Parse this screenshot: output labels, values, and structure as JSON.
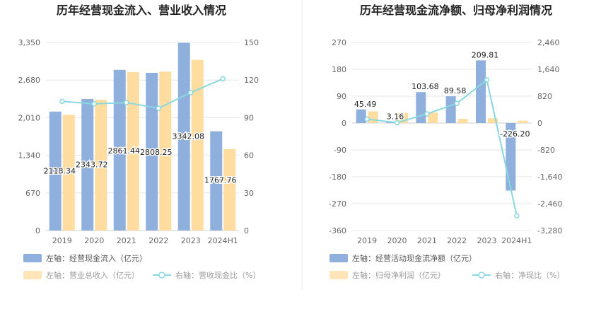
{
  "colors": {
    "bar_primary": "#8fb0dd",
    "bar_secondary": "#ffdc9f",
    "line": "#88d8df"
  },
  "chart_data": [
    {
      "type": "bar",
      "title": "历年经营现金流入、营业收入情况",
      "categories": [
        "2019",
        "2020",
        "2021",
        "2022",
        "2023",
        "2024H1"
      ],
      "left_axis_ticks": [
        "0",
        "670",
        "1,340",
        "2,010",
        "2,680",
        "3,350"
      ],
      "right_axis_ticks": [
        "0",
        "30",
        "60",
        "90",
        "120",
        "150"
      ],
      "ylim_left": [
        0,
        3350
      ],
      "ylim_right": [
        0,
        150
      ],
      "series": [
        {
          "name": "左轴：经营现金流入（亿元）",
          "axis": "left",
          "kind": "bar",
          "values": [
            2118.34,
            2343.72,
            2861.44,
            2808.25,
            3342.08,
            1767.76
          ],
          "labels": [
            "2118.34",
            "2343.72",
            "2861.44",
            "2808.25",
            "3342.08",
            "1767.76"
          ]
        },
        {
          "name": "左轴：营业总收入（亿元）",
          "axis": "left",
          "kind": "bar",
          "values": [
            2060,
            2330,
            2820,
            2830,
            3040,
            1450
          ]
        },
        {
          "name": "右轴：营收现金比（%）",
          "axis": "right",
          "kind": "line",
          "values": [
            103,
            101,
            102,
            97.5,
            110,
            121
          ]
        }
      ],
      "grid": true,
      "legend": "bottom-left"
    },
    {
      "type": "bar",
      "title": "历年经营现金流净额、归母净利润情况",
      "categories": [
        "2019",
        "2020",
        "2021",
        "2022",
        "2023",
        "2024H1"
      ],
      "left_axis_ticks": [
        "-360",
        "-270",
        "-180",
        "-90",
        "0",
        "90",
        "180",
        "270"
      ],
      "right_axis_ticks": [
        "-3,280",
        "-2,460",
        "-1,640",
        "-820",
        "0",
        "820",
        "1,640",
        "2,460"
      ],
      "ylim_left": [
        -360,
        270
      ],
      "ylim_right": [
        -3280,
        2460
      ],
      "series": [
        {
          "name": "左轴：经营活动现金流净额（亿元）",
          "axis": "left",
          "kind": "bar",
          "values": [
            45.49,
            3.16,
            103.68,
            89.58,
            209.81,
            -226.2
          ],
          "labels": [
            "45.49",
            "3.16",
            "103.68",
            "89.58",
            "209.81",
            "-226.20"
          ]
        },
        {
          "name": "左轴：归母净利润（亿元）",
          "axis": "left",
          "kind": "bar",
          "values": [
            39,
            34,
            35,
            14,
            16,
            8
          ]
        },
        {
          "name": "右轴：净现比（%）",
          "axis": "right",
          "kind": "line",
          "values": [
            120,
            10,
            280,
            600,
            1320,
            -2830
          ]
        }
      ],
      "grid": true,
      "legend": "bottom-left"
    }
  ]
}
